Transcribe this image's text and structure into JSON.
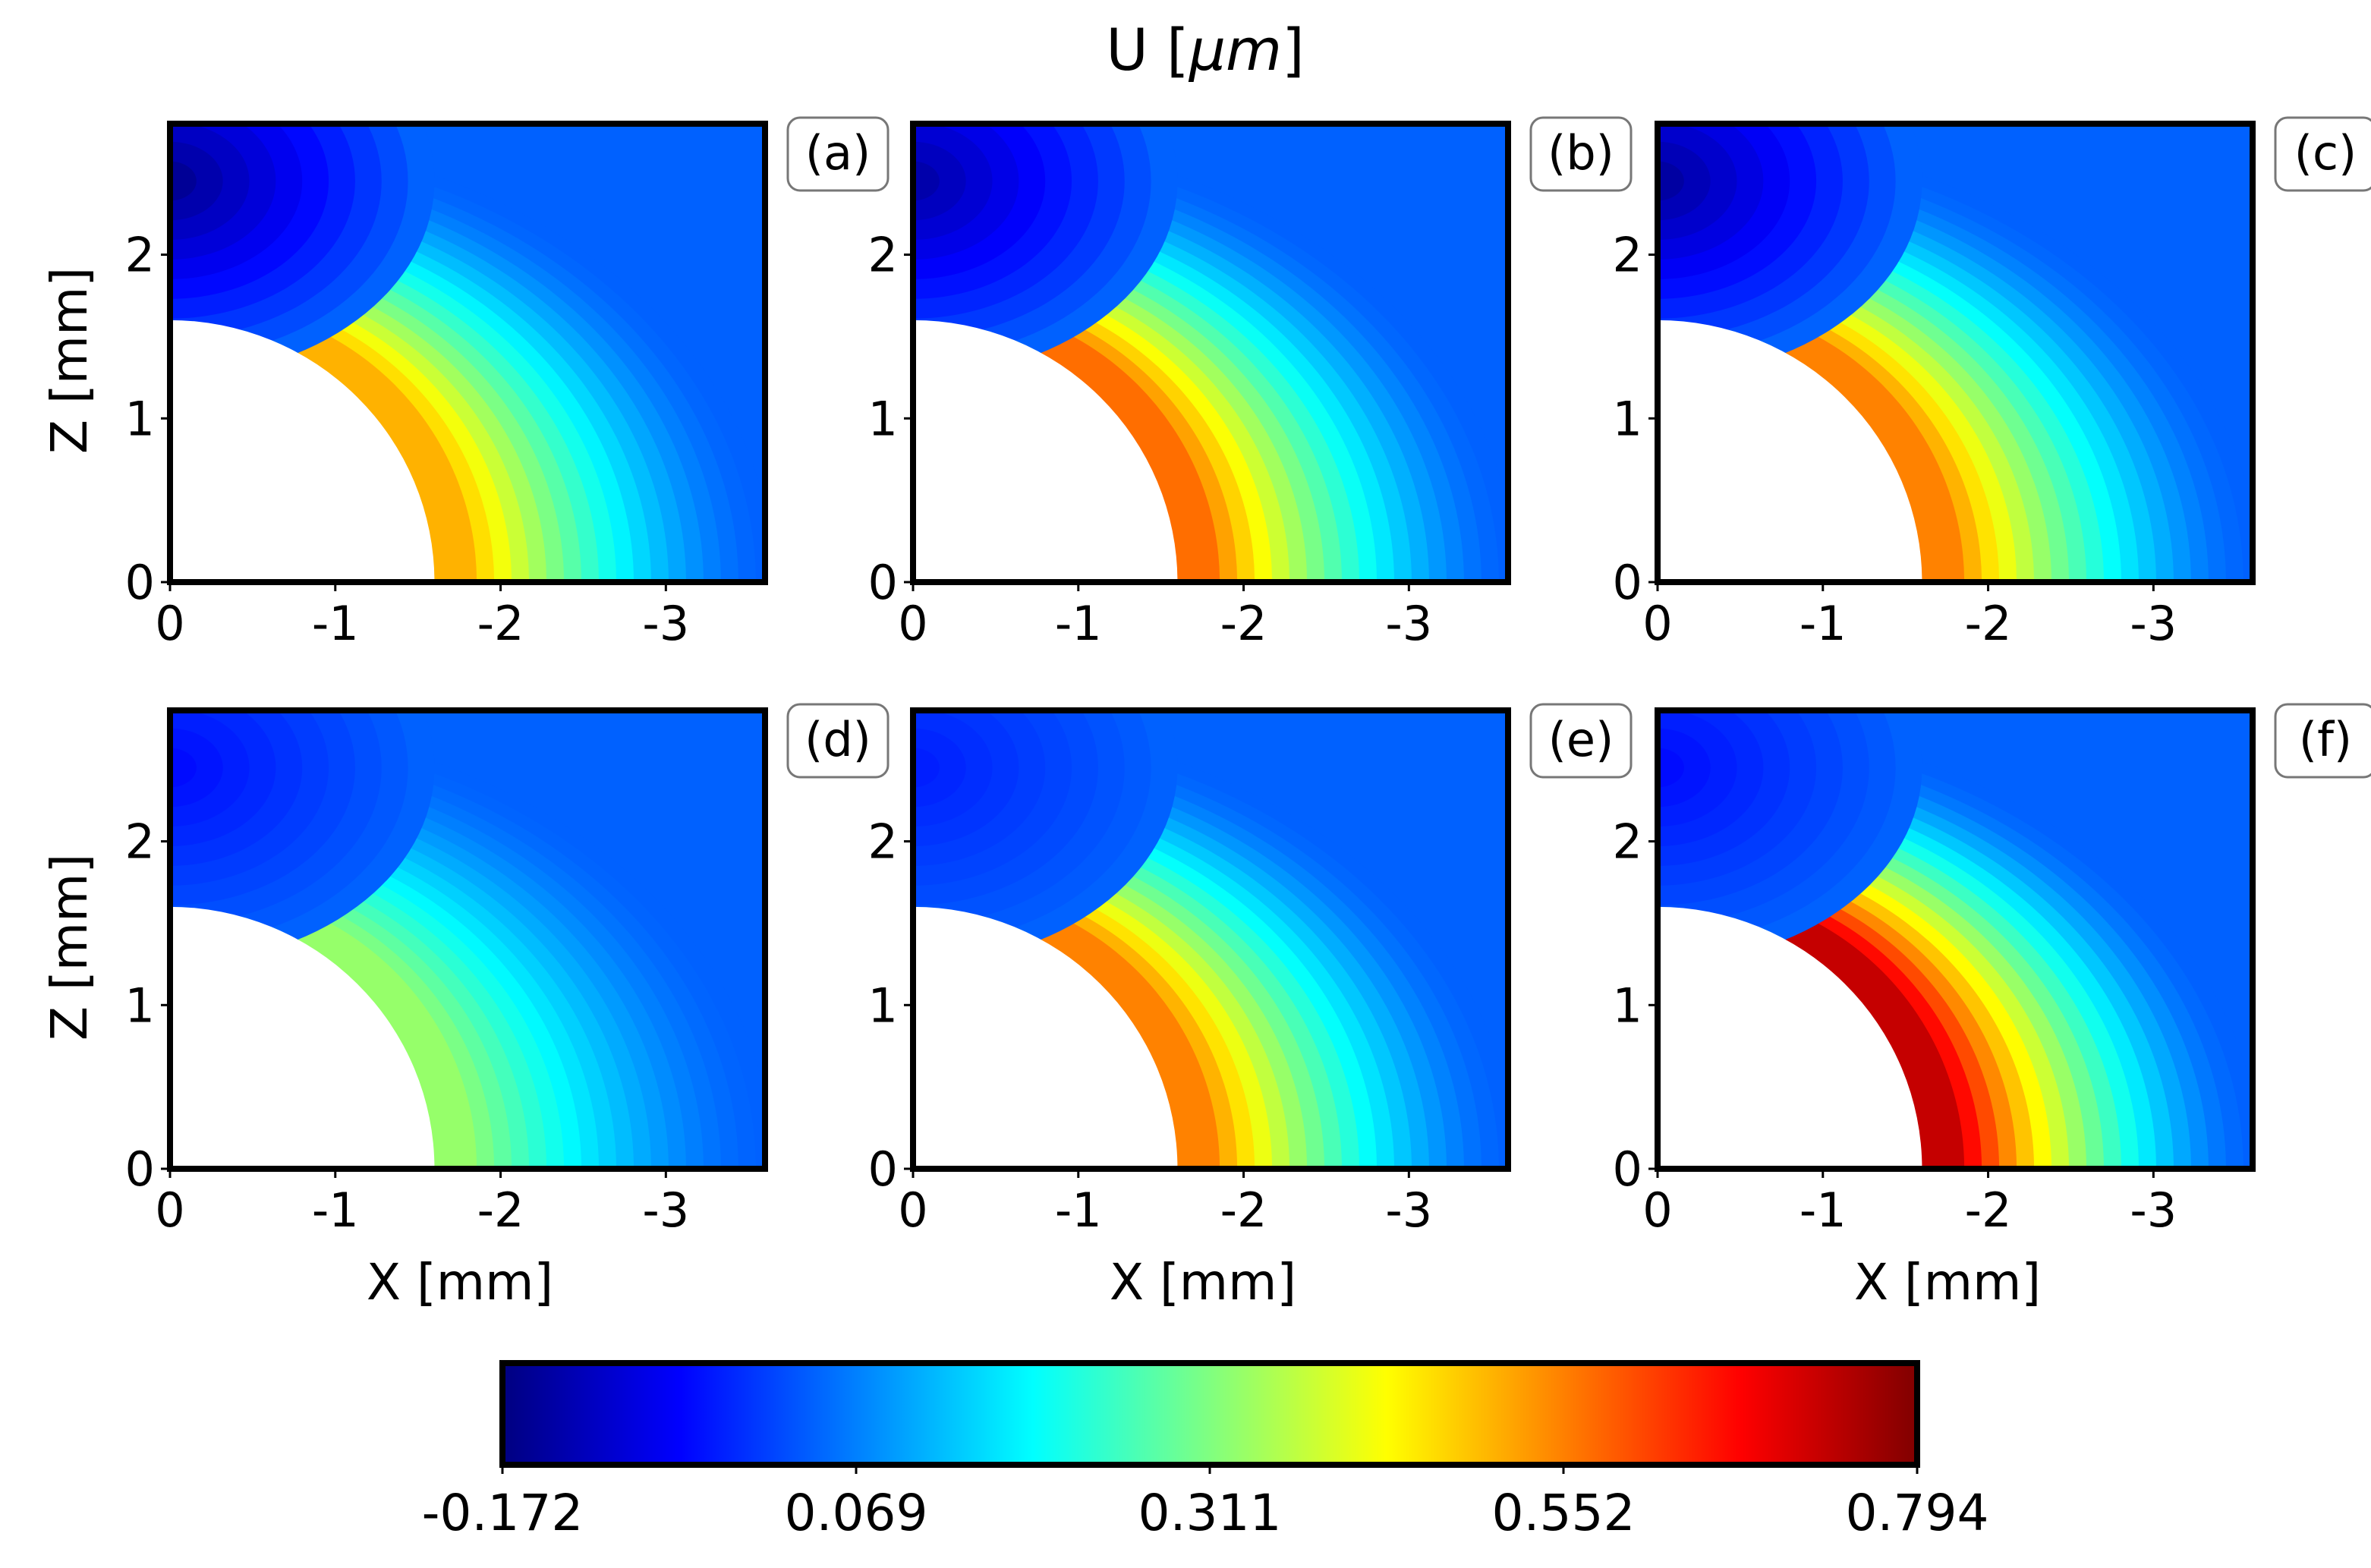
{
  "figure": {
    "title_prefix": "U [",
    "title_unit": "μm",
    "title_suffix": "]"
  },
  "colormap": {
    "name": "jet",
    "stops": [
      "#000080",
      "#0000ff",
      "#0080ff",
      "#00ffff",
      "#80ff80",
      "#ffff00",
      "#ff8000",
      "#ff0000",
      "#800000"
    ]
  },
  "chart_data": [
    {
      "type": "heatmap",
      "panel": "a",
      "label": "(a)",
      "xlabel": "",
      "ylabel": "Z [mm]",
      "xlim": [
        0,
        -3.6
      ],
      "ylim": [
        0,
        2.8
      ],
      "xticks": [
        "0",
        "-1",
        "-2",
        "-3"
      ],
      "yticks": [
        "0",
        "1",
        "2"
      ],
      "hole_radius": 1.6,
      "value_range": [
        -0.172,
        0.794
      ],
      "max_value_at_hole_base": 0.55,
      "min_value_top_left": -0.172
    },
    {
      "type": "heatmap",
      "panel": "b",
      "label": "(b)",
      "xlabel": "",
      "ylabel": "",
      "xlim": [
        0,
        -3.6
      ],
      "ylim": [
        0,
        2.8
      ],
      "xticks": [
        "0",
        "-1",
        "-2",
        "-3"
      ],
      "yticks": [
        "0",
        "1",
        "2"
      ],
      "hole_radius": 1.6,
      "value_range": [
        -0.172,
        0.794
      ],
      "max_value_at_hole_base": 0.62,
      "min_value_top_left": -0.15
    },
    {
      "type": "heatmap",
      "panel": "c",
      "label": "(c)",
      "xlabel": "",
      "ylabel": "",
      "xlim": [
        0,
        -3.6
      ],
      "ylim": [
        0,
        2.8
      ],
      "xticks": [
        "0",
        "-1",
        "-2",
        "-3"
      ],
      "yticks": [
        "0",
        "1",
        "2"
      ],
      "hole_radius": 1.6,
      "value_range": [
        -0.172,
        0.794
      ],
      "max_value_at_hole_base": 0.6,
      "min_value_top_left": -0.16
    },
    {
      "type": "heatmap",
      "panel": "d",
      "label": "(d)",
      "xlabel": "X [mm]",
      "ylabel": "Z [mm]",
      "xlim": [
        0,
        -3.6
      ],
      "ylim": [
        0,
        2.8
      ],
      "xticks": [
        "0",
        "-1",
        "-2",
        "-3"
      ],
      "yticks": [
        "0",
        "1",
        "2"
      ],
      "hole_radius": 1.6,
      "value_range": [
        -0.172,
        0.794
      ],
      "max_value_at_hole_base": 0.36,
      "min_value_top_left": -0.05
    },
    {
      "type": "heatmap",
      "panel": "e",
      "label": "(e)",
      "xlabel": "X [mm]",
      "ylabel": "",
      "xlim": [
        0,
        -3.6
      ],
      "ylim": [
        0,
        2.8
      ],
      "xticks": [
        "0",
        "-1",
        "-2",
        "-3"
      ],
      "yticks": [
        "0",
        "1",
        "2"
      ],
      "hole_radius": 1.6,
      "value_range": [
        -0.172,
        0.794
      ],
      "max_value_at_hole_base": 0.6,
      "min_value_top_left": -0.03
    },
    {
      "type": "heatmap",
      "panel": "f",
      "label": "(f)",
      "xlabel": "X [mm]",
      "ylabel": "",
      "xlim": [
        0,
        -3.6
      ],
      "ylim": [
        0,
        2.8
      ],
      "xticks": [
        "0",
        "-1",
        "-2",
        "-3"
      ],
      "yticks": [
        "0",
        "1",
        "2"
      ],
      "hole_radius": 1.6,
      "value_range": [
        -0.172,
        0.794
      ],
      "max_value_at_hole_base": 0.794,
      "min_value_top_left": -0.05
    }
  ],
  "colorbar": {
    "ticks": [
      "-0.172",
      "0.069",
      "0.311",
      "0.552",
      "0.794"
    ],
    "min": -0.172,
    "max": 0.794
  }
}
